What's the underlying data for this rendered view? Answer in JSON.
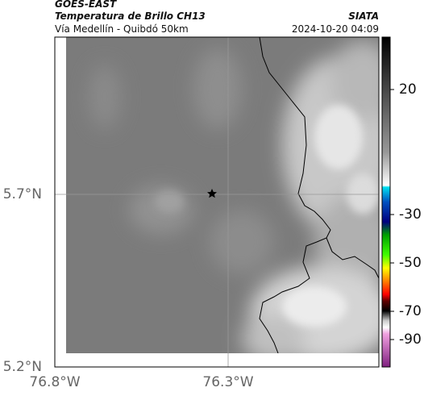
{
  "header": {
    "title": "GOES-EAST",
    "subtitle": "Temperatura de Brillo CH13",
    "route": "Vía Medellín - Quibdó 50km",
    "source": "SIATA",
    "timestamp": "2024-10-20 04:09"
  },
  "axes": {
    "lat_labels": [
      "5.7°N",
      "5.2°N"
    ],
    "lon_labels": [
      "76.8°W",
      "76.3°W"
    ]
  },
  "colorbar": {
    "ticks": [
      20,
      -30,
      -50,
      -70,
      -90
    ]
  }
}
